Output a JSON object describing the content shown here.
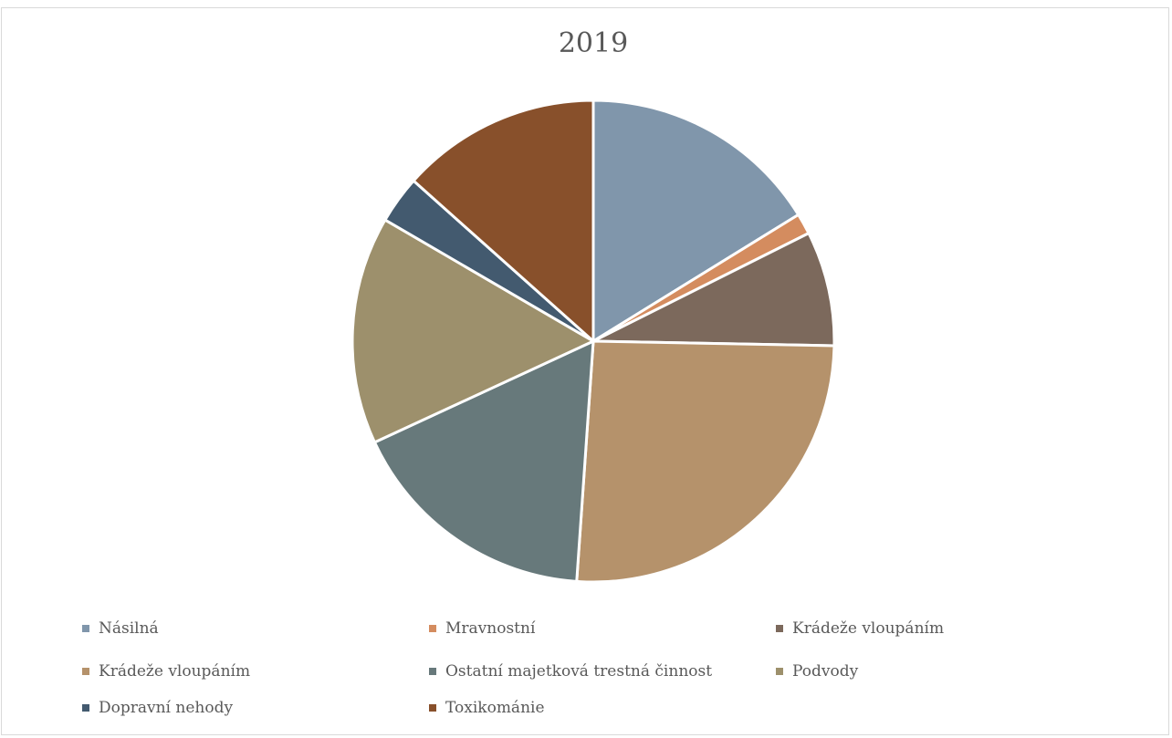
{
  "chart_data": {
    "type": "pie",
    "title": "2019",
    "legend_position": "bottom",
    "slices": [
      {
        "label": "Násilná",
        "value": 16.2,
        "color": "#8096ab"
      },
      {
        "label": "Mravnostní",
        "value": 1.4,
        "color": "#d48c5f"
      },
      {
        "label": "Krádeže vloupáním",
        "value": 7.7,
        "color": "#7c695c"
      },
      {
        "label": "Krádeže vloupáním",
        "value": 25.8,
        "color": "#b5926b"
      },
      {
        "label": "Ostatní majetková trestná činnost",
        "value": 17.0,
        "color": "#67797b"
      },
      {
        "label": "Podvody",
        "value": 15.3,
        "color": "#9d906c"
      },
      {
        "label": "Dopravní nehody",
        "value": 3.2,
        "color": "#435a6f"
      },
      {
        "label": "Toxikománie",
        "value": 13.4,
        "color": "#88502b"
      }
    ]
  }
}
